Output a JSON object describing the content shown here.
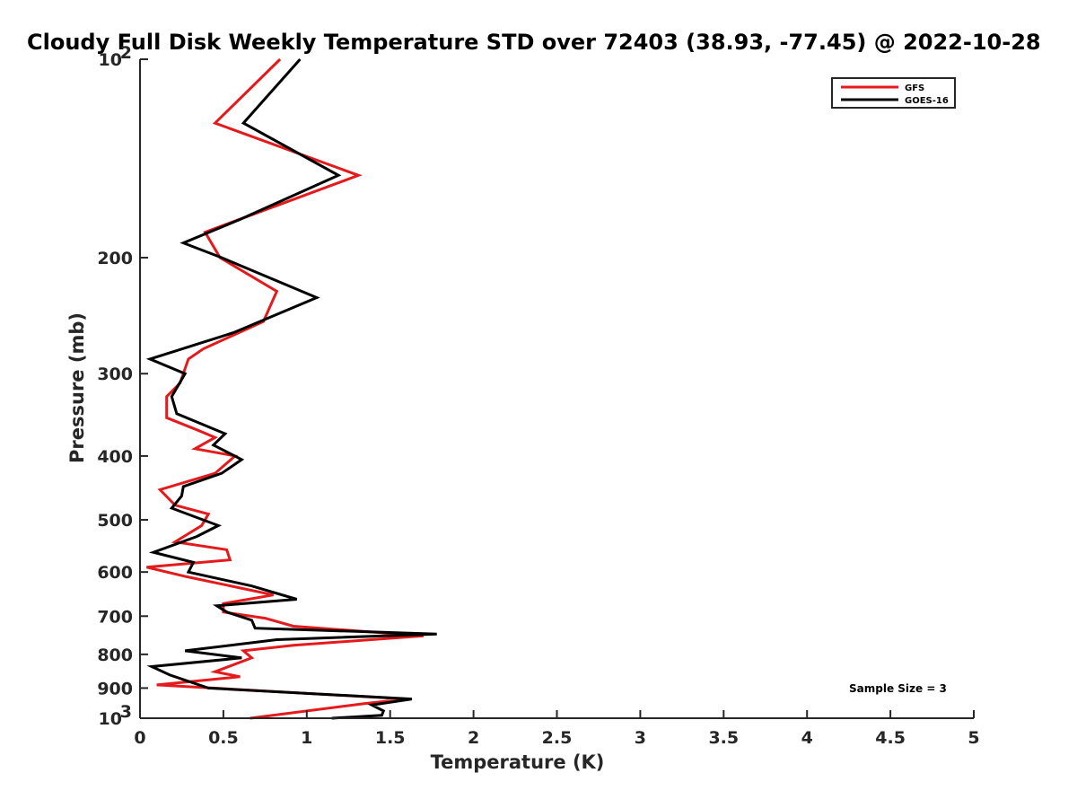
{
  "chart_data": {
    "type": "line",
    "title": "Cloudy Full Disk Weekly Temperature STD over 72403 (38.93, -77.45) @ 2022-10-28",
    "xlabel": "Temperature (K)",
    "ylabel": "Pressure (mb)",
    "xlim": [
      0,
      5
    ],
    "ylim": [
      100,
      1000
    ],
    "y_scale": "log",
    "y_reversed": true,
    "x_ticks": [
      0,
      0.5,
      1,
      1.5,
      2,
      2.5,
      3,
      3.5,
      4,
      4.5,
      5
    ],
    "x_tick_labels": [
      "0",
      "0.5",
      "1",
      "1.5",
      "2",
      "2.5",
      "3",
      "3.5",
      "4",
      "4.5",
      "5"
    ],
    "y_ticks": [
      100,
      200,
      300,
      400,
      500,
      600,
      700,
      800,
      900,
      1000
    ],
    "y_tick_labels": [
      {
        "base": "10",
        "exp": "2"
      },
      {
        "base": "200",
        "exp": ""
      },
      {
        "base": "300",
        "exp": ""
      },
      {
        "base": "400",
        "exp": ""
      },
      {
        "base": "500",
        "exp": ""
      },
      {
        "base": "600",
        "exp": ""
      },
      {
        "base": "700",
        "exp": ""
      },
      {
        "base": "800",
        "exp": ""
      },
      {
        "base": "900",
        "exp": ""
      },
      {
        "base": "10",
        "exp": "3"
      }
    ],
    "grid": false,
    "legend_position": "top-right",
    "annotation": "Sample Size = 3",
    "series": [
      {
        "name": "GFS",
        "color": "#e41a1c",
        "points": [
          [
            0.84,
            100
          ],
          [
            0.45,
            125
          ],
          [
            1.31,
            150
          ],
          [
            0.39,
            183
          ],
          [
            0.48,
            200
          ],
          [
            0.82,
            225
          ],
          [
            0.74,
            250
          ],
          [
            0.38,
            275
          ],
          [
            0.29,
            285
          ],
          [
            0.24,
            310
          ],
          [
            0.16,
            325
          ],
          [
            0.16,
            350
          ],
          [
            0.34,
            365
          ],
          [
            0.45,
            375
          ],
          [
            0.33,
            390
          ],
          [
            0.57,
            400
          ],
          [
            0.45,
            425
          ],
          [
            0.12,
            450
          ],
          [
            0.21,
            475
          ],
          [
            0.41,
            490
          ],
          [
            0.37,
            510
          ],
          [
            0.21,
            540
          ],
          [
            0.52,
            555
          ],
          [
            0.54,
            575
          ],
          [
            0.04,
            590
          ],
          [
            0.28,
            610
          ],
          [
            0.8,
            650
          ],
          [
            0.5,
            670
          ],
          [
            0.5,
            690
          ],
          [
            0.75,
            705
          ],
          [
            0.92,
            725
          ],
          [
            1.7,
            750
          ],
          [
            0.92,
            775
          ],
          [
            0.62,
            790
          ],
          [
            0.67,
            810
          ],
          [
            0.45,
            850
          ],
          [
            0.6,
            865
          ],
          [
            0.1,
            890
          ],
          [
            1.6,
            935
          ],
          [
            1.35,
            950
          ],
          [
            0.66,
            1000
          ]
        ]
      },
      {
        "name": "GOES-16",
        "color": "#000000",
        "points": [
          [
            0.96,
            100
          ],
          [
            0.62,
            125
          ],
          [
            1.19,
            150
          ],
          [
            0.6,
            175
          ],
          [
            0.26,
            190
          ],
          [
            0.49,
            200
          ],
          [
            1.06,
            230
          ],
          [
            0.56,
            260
          ],
          [
            0.06,
            285
          ],
          [
            0.27,
            300
          ],
          [
            0.19,
            325
          ],
          [
            0.22,
            345
          ],
          [
            0.51,
            370
          ],
          [
            0.44,
            385
          ],
          [
            0.61,
            405
          ],
          [
            0.49,
            425
          ],
          [
            0.26,
            445
          ],
          [
            0.25,
            460
          ],
          [
            0.19,
            480
          ],
          [
            0.47,
            510
          ],
          [
            0.34,
            530
          ],
          [
            0.08,
            560
          ],
          [
            0.32,
            580
          ],
          [
            0.29,
            600
          ],
          [
            0.67,
            630
          ],
          [
            0.94,
            660
          ],
          [
            0.46,
            675
          ],
          [
            0.52,
            690
          ],
          [
            0.67,
            710
          ],
          [
            0.69,
            730
          ],
          [
            1.78,
            745
          ],
          [
            0.82,
            760
          ],
          [
            0.27,
            790
          ],
          [
            0.61,
            810
          ],
          [
            0.07,
            835
          ],
          [
            0.18,
            860
          ],
          [
            0.41,
            900
          ],
          [
            1.63,
            935
          ],
          [
            1.39,
            955
          ],
          [
            1.46,
            975
          ],
          [
            1.45,
            990
          ],
          [
            1.15,
            1000
          ]
        ]
      }
    ]
  }
}
